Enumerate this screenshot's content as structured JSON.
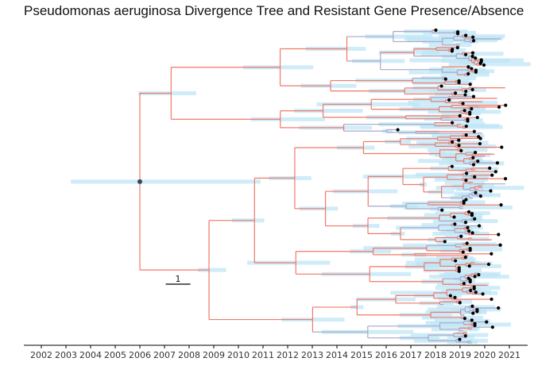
{
  "chart_data": {
    "type": "phylogenetic-tree",
    "title": "Pseudomonas aeruginosa Divergence Tree and Resistant Gene Presence/Absence",
    "xlabel": "",
    "ylabel": "",
    "xlim": [
      2001.4,
      2021.9
    ],
    "x_ticks": [
      "2002",
      "2003",
      "2004",
      "2005",
      "2006",
      "2007",
      "2008",
      "2009",
      "2010",
      "2011",
      "2012",
      "2013",
      "2014",
      "2015",
      "2016",
      "2017",
      "2018",
      "2019",
      "2020",
      "2021"
    ],
    "scale_bar": {
      "label": "1",
      "length_years": 1
    },
    "root_node_year": 2006.0,
    "root_interval": [
      2003.2,
      2010.9
    ],
    "tip_count": 180,
    "tip_year_range": [
      2015.0,
      2020.9
    ],
    "colors": {
      "branch_resistant": "#f07868",
      "branch_absent": "#a8a8c8",
      "node_interval": "#bfe5f5",
      "tip_point": "#000000",
      "node_point": "#34495e",
      "axis": "#000000"
    },
    "legend": "none"
  }
}
